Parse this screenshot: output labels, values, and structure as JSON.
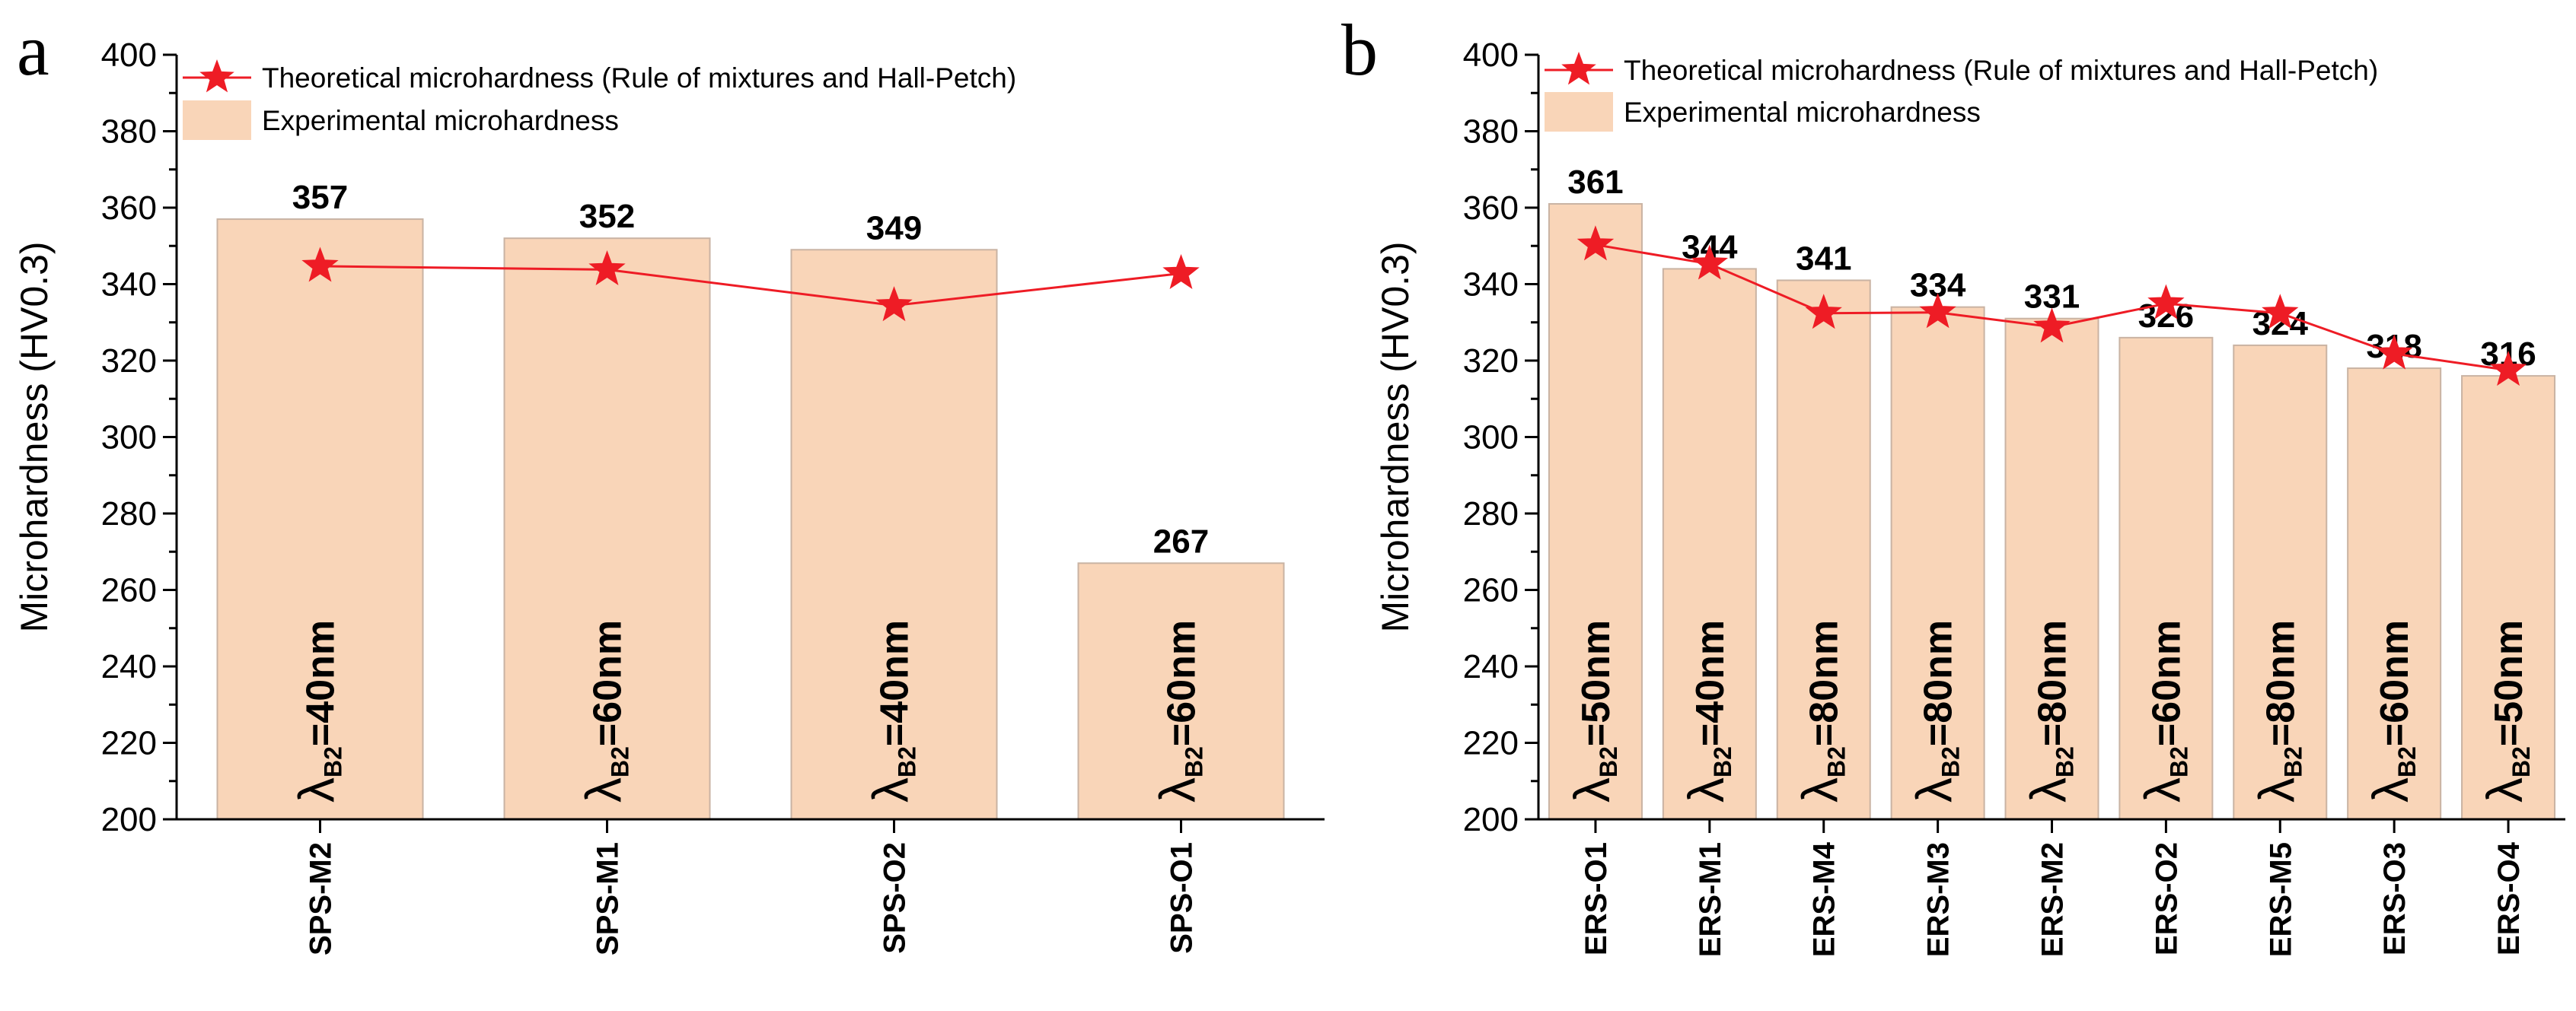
{
  "colors": {
    "bar_fill": "#f9d5b8",
    "bar_stroke": "#c9b3a3",
    "line": "#ee1c25",
    "marker": "#ee1c25",
    "axis": "#000000",
    "text": "#000000"
  },
  "chart_data": [
    {
      "panel": "a",
      "type": "bar",
      "ylabel": "Microhardness (HV0.3)",
      "ylim": [
        200,
        400
      ],
      "yticks": [
        "200",
        "220",
        "240",
        "260",
        "280",
        "300",
        "320",
        "340",
        "360",
        "380",
        "400"
      ],
      "legend": {
        "placement": "top-left",
        "line_label": "Theoretical microhardness (Rule of mixtures and Hall-Petch)",
        "bar_label": "Experimental microhardness"
      },
      "categories": [
        "SPS-M2",
        "SPS-M1",
        "SPS-O2",
        "SPS-O1"
      ],
      "series": [
        {
          "name": "Experimental microhardness",
          "type": "bar",
          "values": [
            357,
            352,
            349,
            267
          ],
          "labels": [
            "357",
            "352",
            "349",
            "267"
          ]
        },
        {
          "name": "Theoretical microhardness (Rule of mixtures and Hall-Petch)",
          "type": "line",
          "values": [
            344.7,
            343.8,
            334.4,
            342.8
          ]
        }
      ],
      "spacing": [
        {
          "symbol": "λ",
          "sub": "B2",
          "rest": "=40nm"
        },
        {
          "symbol": "λ",
          "sub": "B2",
          "rest": "=60nm"
        },
        {
          "symbol": "λ",
          "sub": "B2",
          "rest": "=40nm"
        },
        {
          "symbol": "λ",
          "sub": "B2",
          "rest": "=60nm"
        }
      ]
    },
    {
      "panel": "b",
      "type": "bar",
      "ylabel": "Microhardness (HV0.3)",
      "ylim": [
        200,
        400
      ],
      "yticks": [
        "200",
        "220",
        "240",
        "260",
        "280",
        "300",
        "320",
        "340",
        "360",
        "380",
        "400"
      ],
      "legend": {
        "placement": "top-left",
        "line_label": "Theoretical microhardness (Rule of mixtures and Hall-Petch)",
        "bar_label": "Experimental microhardness"
      },
      "categories": [
        "ERS-O1",
        "ERS-M1",
        "ERS-M4",
        "ERS-M3",
        "ERS-M2",
        "ERS-O2",
        "ERS-M5",
        "ERS-O3",
        "ERS-O4"
      ],
      "series": [
        {
          "name": "Experimental microhardness",
          "type": "bar",
          "values": [
            361,
            344,
            341,
            334,
            331,
            326,
            324,
            318,
            316
          ],
          "labels": [
            "361",
            "344",
            "341",
            "334",
            "331",
            "326",
            "324",
            "318",
            "316"
          ]
        },
        {
          "name": "Theoretical microhardness (Rule of mixtures and Hall-Petch)",
          "type": "line",
          "values": [
            350.3,
            345.3,
            332.4,
            332.6,
            328.8,
            334.9,
            332.4,
            321.8,
            317.5
          ]
        }
      ],
      "spacing": [
        {
          "symbol": "λ",
          "sub": "B2",
          "rest": "=50nm"
        },
        {
          "symbol": "λ",
          "sub": "B2",
          "rest": "=40nm"
        },
        {
          "symbol": "λ",
          "sub": "B2",
          "rest": "=80nm"
        },
        {
          "symbol": "λ",
          "sub": "B2",
          "rest": "=80nm"
        },
        {
          "symbol": "λ",
          "sub": "B2",
          "rest": "=80nm"
        },
        {
          "symbol": "λ",
          "sub": "B2",
          "rest": "=60nm"
        },
        {
          "symbol": "λ",
          "sub": "B2",
          "rest": "=80nm"
        },
        {
          "symbol": "λ",
          "sub": "B2",
          "rest": "=60nm"
        },
        {
          "symbol": "λ",
          "sub": "B2",
          "rest": "=50nm"
        }
      ]
    }
  ]
}
